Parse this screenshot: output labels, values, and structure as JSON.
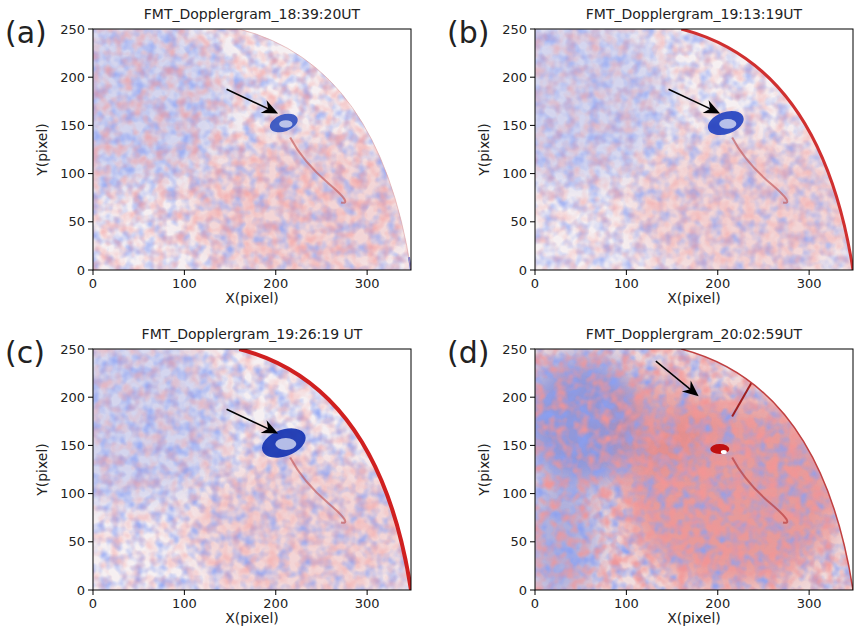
{
  "chart_data": [
    {
      "type": "image",
      "label": "(a)",
      "title": "FMT_Dopplergram_18:39:20UT",
      "x_label": "X(pixel)",
      "y_label": "Y(pixel)",
      "xlim": [
        0,
        348
      ],
      "ylim": [
        0,
        250
      ],
      "xticks": [
        0,
        100,
        200,
        300
      ],
      "yticks": [
        0,
        50,
        100,
        150,
        200,
        250
      ]
    },
    {
      "type": "image",
      "label": "(b)",
      "title": "FMT_Dopplergram_19:13:19UT",
      "x_label": "X(pixel)",
      "y_label": "Y(pixel)",
      "xlim": [
        0,
        348
      ],
      "ylim": [
        0,
        250
      ],
      "xticks": [
        0,
        100,
        200,
        300
      ],
      "yticks": [
        0,
        50,
        100,
        150,
        200,
        250
      ]
    },
    {
      "type": "image",
      "label": "(c)",
      "title": "FMT_Dopplergram_19:26:19 UT",
      "x_label": "X(pixel)",
      "y_label": "Y(pixel)",
      "xlim": [
        0,
        348
      ],
      "ylim": [
        0,
        250
      ],
      "xticks": [
        0,
        100,
        200,
        300
      ],
      "yticks": [
        0,
        50,
        100,
        150,
        200,
        250
      ]
    },
    {
      "type": "image",
      "label": "(d)",
      "title": "FMT_Dopplergram_20:02:59UT",
      "x_label": "X(pixel)",
      "y_label": "Y(pixel)",
      "xlim": [
        0,
        348
      ],
      "ylim": [
        0,
        250
      ],
      "xticks": [
        0,
        100,
        200,
        300
      ],
      "yticks": [
        0,
        50,
        100,
        150,
        200,
        250
      ]
    }
  ]
}
